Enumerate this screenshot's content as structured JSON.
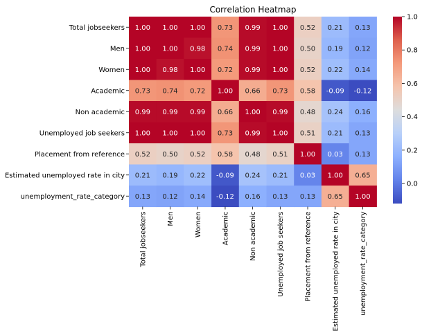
{
  "chart_data": {
    "type": "heatmap",
    "title": "Correlation Heatmap",
    "rows": [
      "Total jobseekers",
      "Men",
      "Women",
      "Academic",
      "Non academic",
      "Unemployed job seekers",
      "Placement from reference",
      "Estimated unemployed rate in city",
      "unemployment_rate_category"
    ],
    "columns": [
      "Total jobseekers",
      "Men",
      "Women",
      "Academic",
      "Non academic",
      "Unemployed job seekers",
      "Placement from reference",
      "Estimated unemployed rate in city",
      "unemployment_rate_category"
    ],
    "values": [
      [
        1.0,
        1.0,
        1.0,
        0.73,
        0.99,
        1.0,
        0.52,
        0.21,
        0.13
      ],
      [
        1.0,
        1.0,
        0.98,
        0.74,
        0.99,
        1.0,
        0.5,
        0.19,
        0.12
      ],
      [
        1.0,
        0.98,
        1.0,
        0.72,
        0.99,
        1.0,
        0.52,
        0.22,
        0.14
      ],
      [
        0.73,
        0.74,
        0.72,
        1.0,
        0.66,
        0.73,
        0.58,
        -0.09,
        -0.12
      ],
      [
        0.99,
        0.99,
        0.99,
        0.66,
        1.0,
        0.99,
        0.48,
        0.24,
        0.16
      ],
      [
        1.0,
        1.0,
        1.0,
        0.73,
        0.99,
        1.0,
        0.51,
        0.21,
        0.13
      ],
      [
        0.52,
        0.5,
        0.52,
        0.58,
        0.48,
        0.51,
        1.0,
        0.03,
        0.13
      ],
      [
        0.21,
        0.19,
        0.22,
        -0.09,
        0.24,
        0.21,
        0.03,
        1.0,
        0.65
      ],
      [
        0.13,
        0.12,
        0.14,
        -0.12,
        0.16,
        0.13,
        0.13,
        0.65,
        1.0
      ]
    ],
    "value_format": "two decimals",
    "colormap": "coolwarm",
    "color_range": [
      -0.12,
      1.0
    ],
    "colorbar": {
      "ticks": [
        -0.0,
        0.2,
        0.4,
        0.6,
        0.8,
        1.0
      ],
      "tick_labels": [
        "0.0",
        "0.2",
        "0.4",
        "0.6",
        "0.8",
        "1.0"
      ]
    }
  }
}
